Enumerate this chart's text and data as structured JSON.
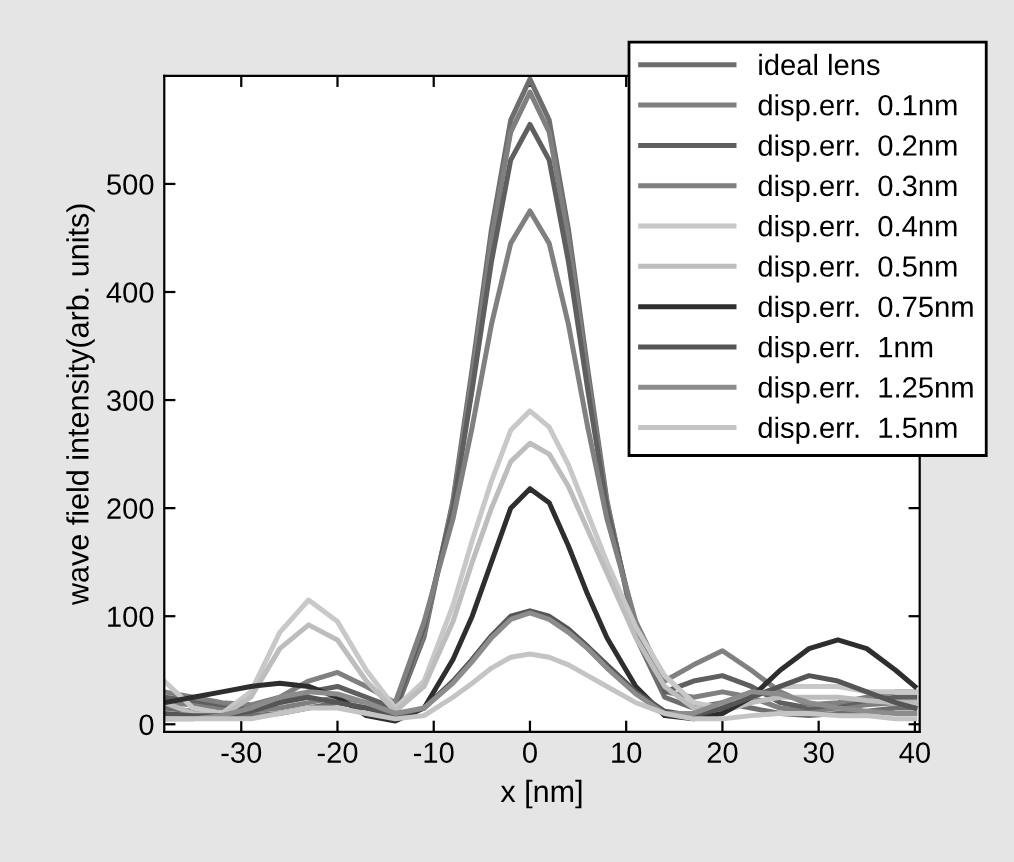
{
  "chart_data": {
    "type": "line",
    "xlabel": "x [nm]",
    "ylabel": "wave field intensity(arb. units)",
    "x": [
      -38,
      -35,
      -32,
      -29,
      -26,
      -23,
      -20,
      -17,
      -14,
      -11,
      -8,
      -6,
      -4,
      -2,
      0,
      2,
      4,
      6,
      8,
      11,
      14,
      17,
      20,
      23,
      26,
      29,
      32,
      35,
      38,
      40
    ],
    "series": [
      {
        "name": "ideal lens",
        "color": "#6e6e6e",
        "values": [
          15,
          12,
          10,
          8,
          10,
          15,
          20,
          15,
          12,
          81,
          207,
          329,
          458,
          559,
          597,
          559,
          458,
          329,
          207,
          81,
          25,
          15,
          20,
          15,
          10,
          8,
          10,
          12,
          15,
          15
        ]
      },
      {
        "name": "disp.err.  0.1nm",
        "color": "#7f7f7f",
        "values": [
          20,
          18,
          15,
          12,
          15,
          20,
          25,
          20,
          15,
          85,
          205,
          322,
          449,
          548,
          585,
          548,
          449,
          322,
          205,
          85,
          30,
          25,
          30,
          25,
          15,
          12,
          15,
          18,
          20,
          20
        ]
      },
      {
        "name": "disp.err.  0.2nm",
        "color": "#5f5f5f",
        "values": [
          25,
          22,
          18,
          15,
          20,
          30,
          35,
          25,
          15,
          90,
          200,
          310,
          428,
          522,
          555,
          522,
          428,
          310,
          200,
          90,
          30,
          40,
          45,
          35,
          20,
          15,
          18,
          22,
          25,
          25
        ]
      },
      {
        "name": "disp.err.  0.3nm",
        "color": "#808080",
        "values": [
          30,
          25,
          20,
          18,
          25,
          40,
          48,
          35,
          20,
          95,
          190,
          275,
          370,
          445,
          475,
          445,
          370,
          275,
          190,
          95,
          40,
          55,
          68,
          50,
          30,
          18,
          20,
          25,
          30,
          30
        ]
      },
      {
        "name": "disp.err.  0.4nm",
        "color": "#c8c8c8",
        "values": [
          40,
          15,
          10,
          30,
          85,
          115,
          95,
          50,
          15,
          40,
          110,
          170,
          225,
          272,
          290,
          275,
          240,
          195,
          150,
          90,
          45,
          20,
          15,
          25,
          35,
          35,
          35,
          30,
          30,
          30
        ]
      },
      {
        "name": "disp.err.  0.5nm",
        "color": "#bdbdbd",
        "values": [
          20,
          10,
          8,
          25,
          70,
          92,
          78,
          40,
          12,
          35,
          95,
          150,
          200,
          243,
          260,
          250,
          220,
          180,
          140,
          80,
          35,
          15,
          12,
          20,
          25,
          25,
          25,
          22,
          20,
          20
        ]
      },
      {
        "name": "disp.err.  0.75nm",
        "color": "#2e2e2e",
        "values": [
          20,
          25,
          30,
          35,
          38,
          35,
          25,
          8,
          3,
          15,
          60,
          100,
          150,
          200,
          218,
          205,
          165,
          120,
          80,
          35,
          8,
          5,
          10,
          25,
          50,
          70,
          78,
          70,
          50,
          35
        ]
      },
      {
        "name": "disp.err.  1nm",
        "color": "#555555",
        "values": [
          10,
          8,
          8,
          12,
          20,
          25,
          20,
          15,
          8,
          15,
          40,
          60,
          82,
          100,
          105,
          100,
          88,
          72,
          55,
          30,
          12,
          8,
          15,
          25,
          35,
          45,
          40,
          30,
          20,
          15
        ]
      },
      {
        "name": "disp.err.  1.25nm",
        "color": "#8c8c8c",
        "values": [
          5,
          5,
          8,
          15,
          25,
          30,
          28,
          20,
          10,
          15,
          38,
          58,
          80,
          97,
          103,
          97,
          85,
          70,
          52,
          28,
          10,
          10,
          20,
          30,
          28,
          20,
          15,
          12,
          10,
          10
        ]
      },
      {
        "name": "disp.err.  1.5nm",
        "color": "#c4c4c4",
        "values": [
          5,
          5,
          5,
          5,
          10,
          15,
          15,
          10,
          5,
          8,
          25,
          38,
          52,
          62,
          65,
          62,
          55,
          45,
          35,
          20,
          10,
          5,
          5,
          8,
          10,
          10,
          8,
          8,
          5,
          5
        ]
      }
    ],
    "xlim": [
      -38,
      40.5
    ],
    "ylim": [
      -7,
      600
    ],
    "xticks": [
      -30,
      -20,
      -10,
      0,
      10,
      20,
      30,
      40
    ],
    "yticks": [
      0,
      100,
      200,
      300,
      400,
      500
    ],
    "grid": false,
    "legend": "top right",
    "marker": "none",
    "line_style": "solid"
  }
}
